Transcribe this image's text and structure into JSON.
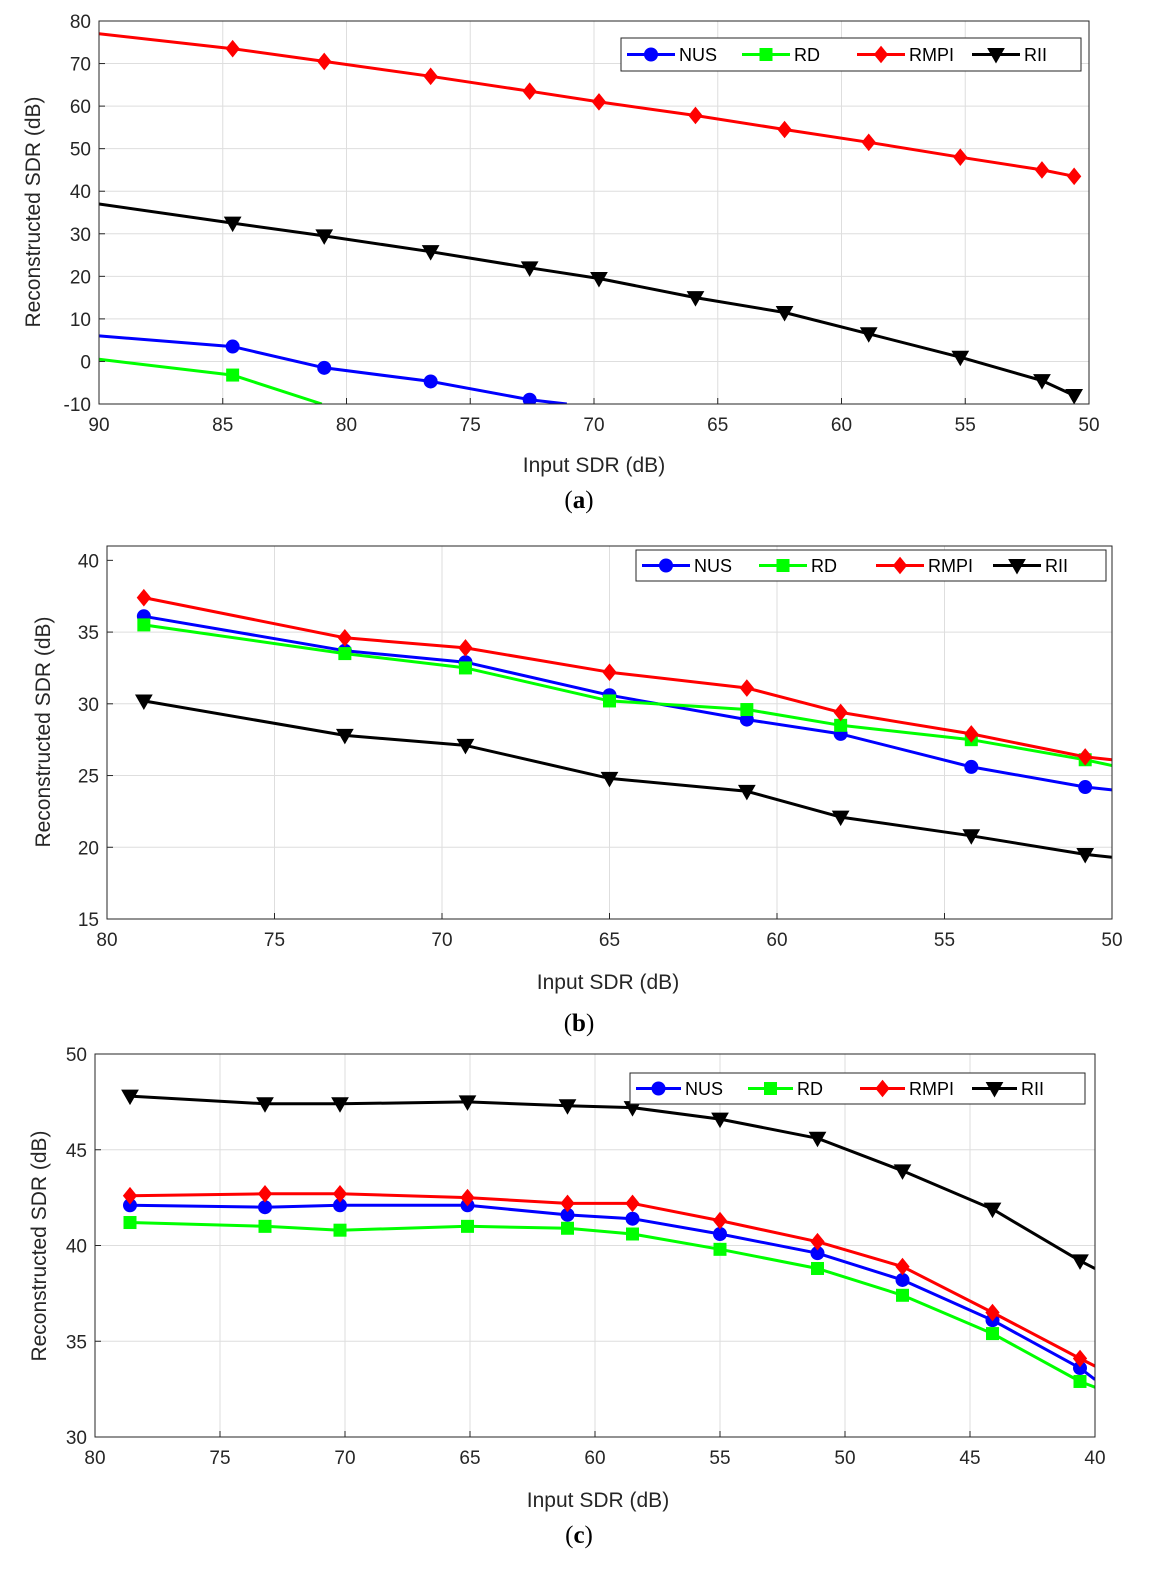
{
  "chart_data": [
    {
      "type": "line",
      "panel": "a",
      "caption_letter": "a",
      "xlabel": "Input SDR (dB)",
      "ylabel": "Reconstructed SDR (dB)",
      "xlim": [
        90,
        50
      ],
      "ylim": [
        -10,
        80
      ],
      "xticks": [
        90,
        85,
        80,
        75,
        70,
        65,
        60,
        55,
        50
      ],
      "yticks": [
        -10,
        0,
        10,
        20,
        30,
        40,
        50,
        60,
        70,
        80
      ],
      "grid": true,
      "legend": "top-right",
      "series": [
        {
          "name": "NUS",
          "color": "#0000ff",
          "marker": "circle",
          "x": [
            90,
            84.6,
            80.9,
            76.6,
            72.6,
            71.1
          ],
          "y": [
            6,
            3.5,
            -1.5,
            -4.7,
            -9,
            -10
          ]
        },
        {
          "name": "RD",
          "color": "#00ff00",
          "marker": "square",
          "x": [
            90,
            84.6,
            81.0
          ],
          "y": [
            0.5,
            -3.2,
            -10
          ]
        },
        {
          "name": "RMPI",
          "color": "#ff0000",
          "marker": "diamond",
          "x": [
            90,
            84.6,
            80.9,
            76.6,
            72.6,
            69.8,
            65.9,
            62.3,
            58.9,
            55.2,
            51.9,
            50.6
          ],
          "y": [
            77,
            73.5,
            70.5,
            67,
            63.5,
            61,
            57.8,
            54.5,
            51.5,
            48,
            45,
            43.5
          ]
        },
        {
          "name": "RII",
          "color": "#000000",
          "marker": "triangle-down",
          "x": [
            90,
            84.6,
            80.9,
            76.6,
            72.6,
            69.8,
            65.9,
            62.3,
            58.9,
            55.2,
            51.9,
            50.6
          ],
          "y": [
            37,
            32.5,
            29.5,
            25.8,
            22,
            19.5,
            15,
            11.5,
            6.5,
            1,
            -4.5,
            -8
          ]
        }
      ]
    },
    {
      "type": "line",
      "panel": "b",
      "caption_letter": "b",
      "xlabel": "Input SDR (dB)",
      "ylabel": "Reconstructed SDR (dB)",
      "xlim": [
        80,
        50
      ],
      "ylim": [
        15,
        41
      ],
      "xticks": [
        80,
        75,
        70,
        65,
        60,
        55,
        50
      ],
      "yticks": [
        15,
        20,
        25,
        30,
        35,
        40
      ],
      "grid": true,
      "legend": "top-right",
      "series": [
        {
          "name": "NUS",
          "color": "#0000ff",
          "marker": "circle",
          "x": [
            78.9,
            72.9,
            69.3,
            65.0,
            60.9,
            58.1,
            54.2,
            50.8,
            50.0
          ],
          "y": [
            36.1,
            33.7,
            32.9,
            30.6,
            28.9,
            27.9,
            25.6,
            24.2,
            24.0
          ]
        },
        {
          "name": "RD",
          "color": "#00ff00",
          "marker": "square",
          "x": [
            78.9,
            72.9,
            69.3,
            65.0,
            60.9,
            58.1,
            54.2,
            50.8,
            50.0
          ],
          "y": [
            35.5,
            33.5,
            32.5,
            30.2,
            29.6,
            28.5,
            27.5,
            26.1,
            25.7
          ]
        },
        {
          "name": "RMPI",
          "color": "#ff0000",
          "marker": "diamond",
          "x": [
            78.9,
            72.9,
            69.3,
            65.0,
            60.9,
            58.1,
            54.2,
            50.8,
            50.0
          ],
          "y": [
            37.4,
            34.6,
            33.9,
            32.2,
            31.1,
            29.4,
            27.9,
            26.3,
            26.1
          ]
        },
        {
          "name": "RII",
          "color": "#000000",
          "marker": "triangle-down",
          "x": [
            78.9,
            72.9,
            69.3,
            65.0,
            60.9,
            58.1,
            54.2,
            50.8,
            50.0
          ],
          "y": [
            30.2,
            27.8,
            27.1,
            24.8,
            23.9,
            22.1,
            20.8,
            19.5,
            19.3
          ]
        }
      ]
    },
    {
      "type": "line",
      "panel": "c",
      "caption_letter": "c",
      "xlabel": "Input SDR (dB)",
      "ylabel": "Reconstructed SDR (dB)",
      "xlim": [
        80,
        40
      ],
      "ylim": [
        30,
        50
      ],
      "xticks": [
        80,
        75,
        70,
        65,
        60,
        55,
        50,
        45,
        40
      ],
      "yticks": [
        30,
        35,
        40,
        45,
        50
      ],
      "grid": true,
      "legend": "top-right",
      "series": [
        {
          "name": "NUS",
          "color": "#0000ff",
          "marker": "circle",
          "x": [
            78.6,
            73.2,
            70.2,
            65.1,
            61.1,
            58.5,
            55.0,
            51.1,
            47.7,
            44.1,
            40.6,
            40.0
          ],
          "y": [
            42.1,
            42.0,
            42.1,
            42.1,
            41.6,
            41.4,
            40.6,
            39.6,
            38.2,
            36.1,
            33.6,
            33.0
          ]
        },
        {
          "name": "RD",
          "color": "#00ff00",
          "marker": "square",
          "x": [
            78.6,
            73.2,
            70.2,
            65.1,
            61.1,
            58.5,
            55.0,
            51.1,
            47.7,
            44.1,
            40.6,
            40.0
          ],
          "y": [
            41.2,
            41.0,
            40.8,
            41.0,
            40.9,
            40.6,
            39.8,
            38.8,
            37.4,
            35.4,
            32.9,
            32.6
          ]
        },
        {
          "name": "RMPI",
          "color": "#ff0000",
          "marker": "diamond",
          "x": [
            78.6,
            73.2,
            70.2,
            65.1,
            61.1,
            58.5,
            55.0,
            51.1,
            47.7,
            44.1,
            40.6,
            40.0
          ],
          "y": [
            42.6,
            42.7,
            42.7,
            42.5,
            42.2,
            42.2,
            41.3,
            40.2,
            38.9,
            36.5,
            34.1,
            33.7
          ]
        },
        {
          "name": "RII",
          "color": "#000000",
          "marker": "triangle-down",
          "x": [
            78.6,
            73.2,
            70.2,
            65.1,
            61.1,
            58.5,
            55.0,
            51.1,
            47.7,
            44.1,
            40.6,
            40.0
          ],
          "y": [
            47.8,
            47.4,
            47.4,
            47.5,
            47.3,
            47.2,
            46.6,
            45.6,
            43.9,
            41.9,
            39.2,
            38.8
          ]
        }
      ]
    }
  ]
}
